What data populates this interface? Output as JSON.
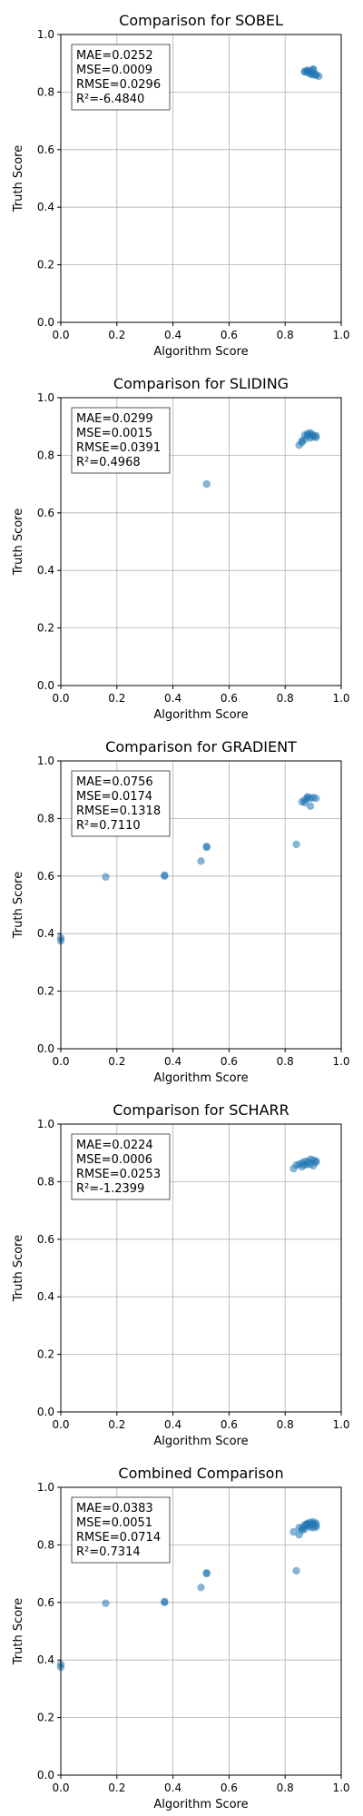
{
  "chart_data": [
    {
      "type": "scatter",
      "title": "Comparison for SOBEL",
      "xlabel": "Algorithm Score",
      "ylabel": "Truth Score",
      "xlim": [
        0,
        1
      ],
      "ylim": [
        0,
        1
      ],
      "xticks": [
        "0.0",
        "0.2",
        "0.4",
        "0.6",
        "0.8",
        "1.0"
      ],
      "yticks": [
        "0.0",
        "0.2",
        "0.4",
        "0.6",
        "0.8",
        "1.0"
      ],
      "grid": true,
      "stats": [
        "MAE=0.0252",
        "MSE=0.0009",
        "RMSE=0.0296",
        "R²=-6.4840"
      ],
      "points": [
        [
          0.87,
          0.87
        ],
        [
          0.88,
          0.875
        ],
        [
          0.89,
          0.872
        ],
        [
          0.9,
          0.878
        ],
        [
          0.89,
          0.862
        ],
        [
          0.91,
          0.858
        ],
        [
          0.88,
          0.868
        ],
        [
          0.9,
          0.865
        ],
        [
          0.87,
          0.872
        ],
        [
          0.92,
          0.855
        ],
        [
          0.9,
          0.88
        ],
        [
          0.89,
          0.868
        ],
        [
          0.91,
          0.862
        ],
        [
          0.88,
          0.875
        ],
        [
          0.9,
          0.86
        ]
      ]
    },
    {
      "type": "scatter",
      "title": "Comparison for SLIDING",
      "xlabel": "Algorithm Score",
      "ylabel": "Truth Score",
      "xlim": [
        0,
        1
      ],
      "ylim": [
        0,
        1
      ],
      "xticks": [
        "0.0",
        "0.2",
        "0.4",
        "0.6",
        "0.8",
        "1.0"
      ],
      "yticks": [
        "0.0",
        "0.2",
        "0.4",
        "0.6",
        "0.8",
        "1.0"
      ],
      "grid": true,
      "stats": [
        "MAE=0.0299",
        "MSE=0.0015",
        "RMSE=0.0391",
        "R²=0.4968"
      ],
      "points": [
        [
          0.52,
          0.7
        ],
        [
          0.85,
          0.835
        ],
        [
          0.86,
          0.845
        ],
        [
          0.87,
          0.855
        ],
        [
          0.88,
          0.868
        ],
        [
          0.89,
          0.872
        ],
        [
          0.9,
          0.865
        ],
        [
          0.91,
          0.862
        ],
        [
          0.88,
          0.875
        ],
        [
          0.89,
          0.86
        ],
        [
          0.9,
          0.87
        ],
        [
          0.87,
          0.87
        ],
        [
          0.91,
          0.868
        ],
        [
          0.89,
          0.878
        ],
        [
          0.86,
          0.85
        ]
      ]
    },
    {
      "type": "scatter",
      "title": "Comparison for GRADIENT",
      "xlabel": "Algorithm Score",
      "ylabel": "Truth Score",
      "xlim": [
        0,
        1
      ],
      "ylim": [
        0,
        1
      ],
      "xticks": [
        "0.0",
        "0.2",
        "0.4",
        "0.6",
        "0.8",
        "1.0"
      ],
      "yticks": [
        "0.0",
        "0.2",
        "0.4",
        "0.6",
        "0.8",
        "1.0"
      ],
      "grid": true,
      "stats": [
        "MAE=0.0756",
        "MSE=0.0174",
        "RMSE=0.1318",
        "R²=0.7110"
      ],
      "points": [
        [
          0.0,
          0.375
        ],
        [
          0.0,
          0.385
        ],
        [
          0.16,
          0.597
        ],
        [
          0.37,
          0.6
        ],
        [
          0.37,
          0.603
        ],
        [
          0.5,
          0.652
        ],
        [
          0.52,
          0.7
        ],
        [
          0.52,
          0.703
        ],
        [
          0.84,
          0.71
        ],
        [
          0.89,
          0.843
        ],
        [
          0.86,
          0.858
        ],
        [
          0.87,
          0.865
        ],
        [
          0.88,
          0.872
        ],
        [
          0.89,
          0.87
        ],
        [
          0.9,
          0.873
        ],
        [
          0.91,
          0.87
        ],
        [
          0.87,
          0.855
        ],
        [
          0.88,
          0.875
        ]
      ]
    },
    {
      "type": "scatter",
      "title": "Comparison for SCHARR",
      "xlabel": "Algorithm Score",
      "ylabel": "Truth Score",
      "xlim": [
        0,
        1
      ],
      "ylim": [
        0,
        1
      ],
      "xticks": [
        "0.0",
        "0.2",
        "0.4",
        "0.6",
        "0.8",
        "1.0"
      ],
      "yticks": [
        "0.0",
        "0.2",
        "0.4",
        "0.6",
        "0.8",
        "1.0"
      ],
      "grid": true,
      "stats": [
        "MAE=0.0224",
        "MSE=0.0006",
        "RMSE=0.0253",
        "R²=-1.2399"
      ],
      "points": [
        [
          0.83,
          0.845
        ],
        [
          0.85,
          0.86
        ],
        [
          0.86,
          0.865
        ],
        [
          0.87,
          0.858
        ],
        [
          0.88,
          0.87
        ],
        [
          0.89,
          0.862
        ],
        [
          0.9,
          0.875
        ],
        [
          0.91,
          0.868
        ],
        [
          0.86,
          0.852
        ],
        [
          0.89,
          0.878
        ],
        [
          0.9,
          0.855
        ],
        [
          0.87,
          0.87
        ],
        [
          0.88,
          0.86
        ],
        [
          0.84,
          0.858
        ],
        [
          0.91,
          0.872
        ]
      ]
    },
    {
      "type": "scatter",
      "title": "Combined Comparison",
      "xlabel": "Algorithm Score",
      "ylabel": "Truth Score",
      "xlim": [
        0,
        1
      ],
      "ylim": [
        0,
        1
      ],
      "xticks": [
        "0.0",
        "0.2",
        "0.4",
        "0.6",
        "0.8",
        "1.0"
      ],
      "yticks": [
        "0.0",
        "0.2",
        "0.4",
        "0.6",
        "0.8",
        "1.0"
      ],
      "grid": true,
      "stats": [
        "MAE=0.0383",
        "MSE=0.0051",
        "RMSE=0.0714",
        "R²=0.7314"
      ],
      "points": [
        [
          0.0,
          0.375
        ],
        [
          0.0,
          0.385
        ],
        [
          0.16,
          0.597
        ],
        [
          0.37,
          0.6
        ],
        [
          0.37,
          0.603
        ],
        [
          0.5,
          0.652
        ],
        [
          0.52,
          0.7
        ],
        [
          0.52,
          0.703
        ],
        [
          0.84,
          0.71
        ],
        [
          0.83,
          0.845
        ],
        [
          0.85,
          0.835
        ],
        [
          0.86,
          0.858
        ],
        [
          0.87,
          0.865
        ],
        [
          0.88,
          0.872
        ],
        [
          0.89,
          0.87
        ],
        [
          0.9,
          0.873
        ],
        [
          0.91,
          0.868
        ],
        [
          0.87,
          0.855
        ],
        [
          0.88,
          0.875
        ],
        [
          0.89,
          0.878
        ],
        [
          0.9,
          0.86
        ],
        [
          0.91,
          0.862
        ],
        [
          0.86,
          0.85
        ],
        [
          0.89,
          0.862
        ],
        [
          0.9,
          0.88
        ],
        [
          0.88,
          0.868
        ],
        [
          0.87,
          0.87
        ],
        [
          0.85,
          0.86
        ],
        [
          0.91,
          0.875
        ]
      ]
    }
  ],
  "colors": {
    "marker": "#1f77b4",
    "grid": "#b0b0b0",
    "axis": "#000000",
    "background": "#ffffff"
  }
}
